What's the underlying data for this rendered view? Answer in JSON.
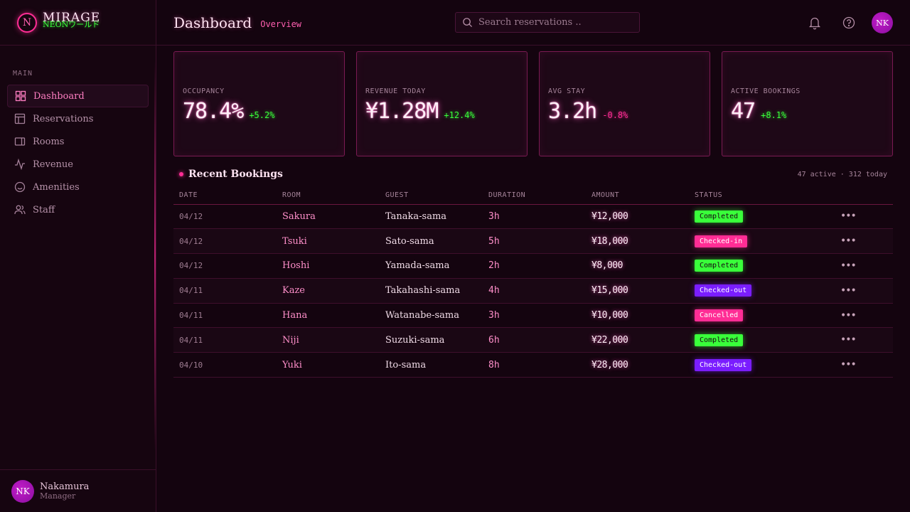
{
  "brand": {
    "logo_letter": "N",
    "name": "MIRAGE",
    "subtitle": "NEONワールド"
  },
  "sidebar": {
    "section_label": "MAIN",
    "items": [
      {
        "label": "Dashboard",
        "icon": "grid-icon",
        "active": true
      },
      {
        "label": "Reservations",
        "icon": "layout-icon",
        "active": false
      },
      {
        "label": "Rooms",
        "icon": "door-icon",
        "active": false
      },
      {
        "label": "Revenue",
        "icon": "activity-icon",
        "active": false
      },
      {
        "label": "Amenities",
        "icon": "smile-icon",
        "active": false
      },
      {
        "label": "Staff",
        "icon": "users-icon",
        "active": false
      }
    ]
  },
  "user": {
    "initials": "NK",
    "name": "Nakamura",
    "role": "Manager"
  },
  "header": {
    "title": "Dashboard",
    "subtitle": "Overview",
    "search_placeholder": "Search reservations ..",
    "avatar_initials": "NK"
  },
  "stats": [
    {
      "label": "OCCUPANCY",
      "value": "78.4%",
      "delta": "+5.2%",
      "trend": "up"
    },
    {
      "label": "REVENUE TODAY",
      "value": "¥1.28M",
      "delta": "+12.4%",
      "trend": "up"
    },
    {
      "label": "AVG STAY",
      "value": "3.2h",
      "delta": "-0.8%",
      "trend": "down"
    },
    {
      "label": "ACTIVE BOOKINGS",
      "value": "47",
      "delta": "+8.1%",
      "trend": "up"
    }
  ],
  "bookings": {
    "title": "Recent Bookings",
    "meta": "47 active · 312 today",
    "columns": [
      "DATE",
      "ROOM",
      "GUEST",
      "DURATION",
      "AMOUNT",
      "STATUS"
    ],
    "rows": [
      {
        "date": "04/12",
        "room": "Sakura",
        "guest": "Tanaka-sama",
        "duration": "3h",
        "amount": "¥12,000",
        "status": "Completed",
        "status_key": "completed"
      },
      {
        "date": "04/12",
        "room": "Tsuki",
        "guest": "Sato-sama",
        "duration": "5h",
        "amount": "¥18,000",
        "status": "Checked-in",
        "status_key": "checkedin"
      },
      {
        "date": "04/12",
        "room": "Hoshi",
        "guest": "Yamada-sama",
        "duration": "2h",
        "amount": "¥8,000",
        "status": "Completed",
        "status_key": "completed"
      },
      {
        "date": "04/11",
        "room": "Kaze",
        "guest": "Takahashi-sama",
        "duration": "4h",
        "amount": "¥15,000",
        "status": "Checked-out",
        "status_key": "checkedout"
      },
      {
        "date": "04/11",
        "room": "Hana",
        "guest": "Watanabe-sama",
        "duration": "3h",
        "amount": "¥10,000",
        "status": "Cancelled",
        "status_key": "cancelled"
      },
      {
        "date": "04/11",
        "room": "Niji",
        "guest": "Suzuki-sama",
        "duration": "6h",
        "amount": "¥22,000",
        "status": "Completed",
        "status_key": "completed"
      },
      {
        "date": "04/10",
        "room": "Yuki",
        "guest": "Ito-sama",
        "duration": "8h",
        "amount": "¥28,000",
        "status": "Checked-out",
        "status_key": "checkedout"
      }
    ],
    "more_label": "•••"
  },
  "colors": {
    "accent": "#ff2d95",
    "success": "#39ff3a",
    "violet": "#7a1dff",
    "background": "#14040f"
  }
}
